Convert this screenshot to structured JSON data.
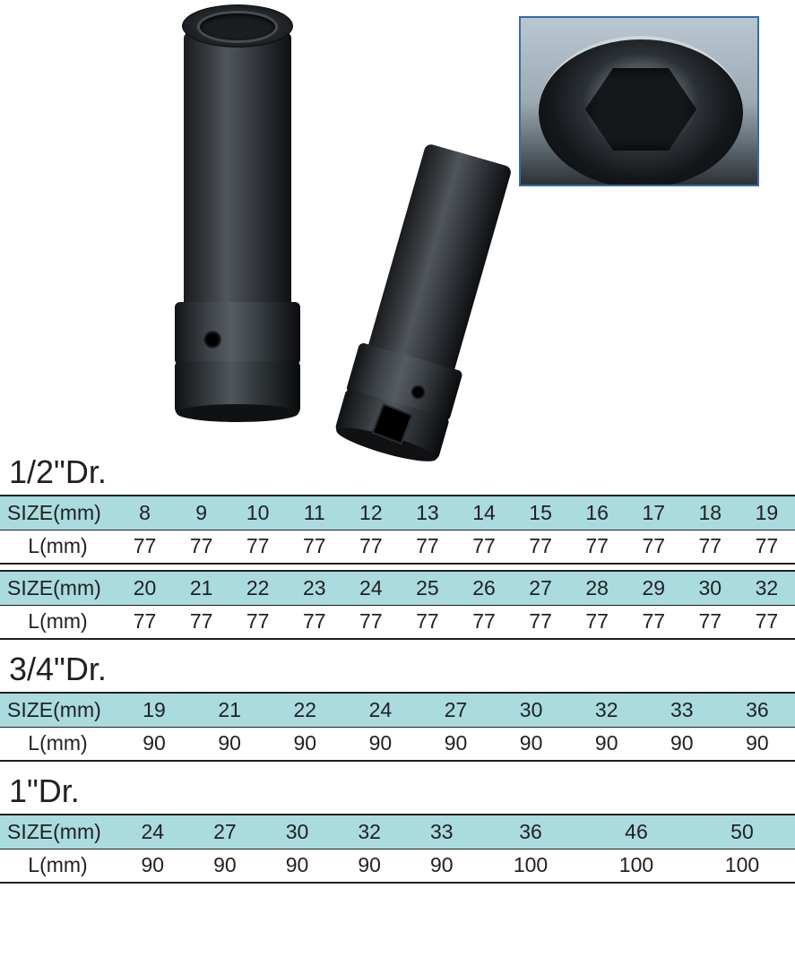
{
  "colors": {
    "size_row_bg": "#a9dbdf",
    "l_row_bg": "#ffffff",
    "rule": "#231f20",
    "text": "#231f20",
    "inset_border": "#3a6aa7"
  },
  "labels": {
    "size": "SIZE(mm)",
    "length": "L(mm)"
  },
  "sections": [
    {
      "heading": "1/2\"Dr.",
      "subtables": [
        {
          "sizes": [
            "8",
            "9",
            "10",
            "11",
            "12",
            "13",
            "14",
            "15",
            "16",
            "17",
            "18",
            "19"
          ],
          "lengths": [
            "77",
            "77",
            "77",
            "77",
            "77",
            "77",
            "77",
            "77",
            "77",
            "77",
            "77",
            "77"
          ]
        },
        {
          "sizes": [
            "20",
            "21",
            "22",
            "23",
            "24",
            "25",
            "26",
            "27",
            "28",
            "29",
            "30",
            "32"
          ],
          "lengths": [
            "77",
            "77",
            "77",
            "77",
            "77",
            "77",
            "77",
            "77",
            "77",
            "77",
            "77",
            "77"
          ]
        }
      ]
    },
    {
      "heading": "3/4\"Dr.",
      "subtables": [
        {
          "sizes": [
            "19",
            "21",
            "22",
            "24",
            "27",
            "30",
            "32",
            "33",
            "36"
          ],
          "lengths": [
            "90",
            "90",
            "90",
            "90",
            "90",
            "90",
            "90",
            "90",
            "90"
          ]
        }
      ]
    },
    {
      "heading": "1\"Dr.",
      "subtables": [
        {
          "sizes": [
            "24",
            "27",
            "30",
            "32",
            "33",
            "36",
            "46",
            "50"
          ],
          "lengths": [
            "90",
            "90",
            "90",
            "90",
            "90",
            "100",
            "100",
            "100"
          ]
        }
      ]
    }
  ]
}
